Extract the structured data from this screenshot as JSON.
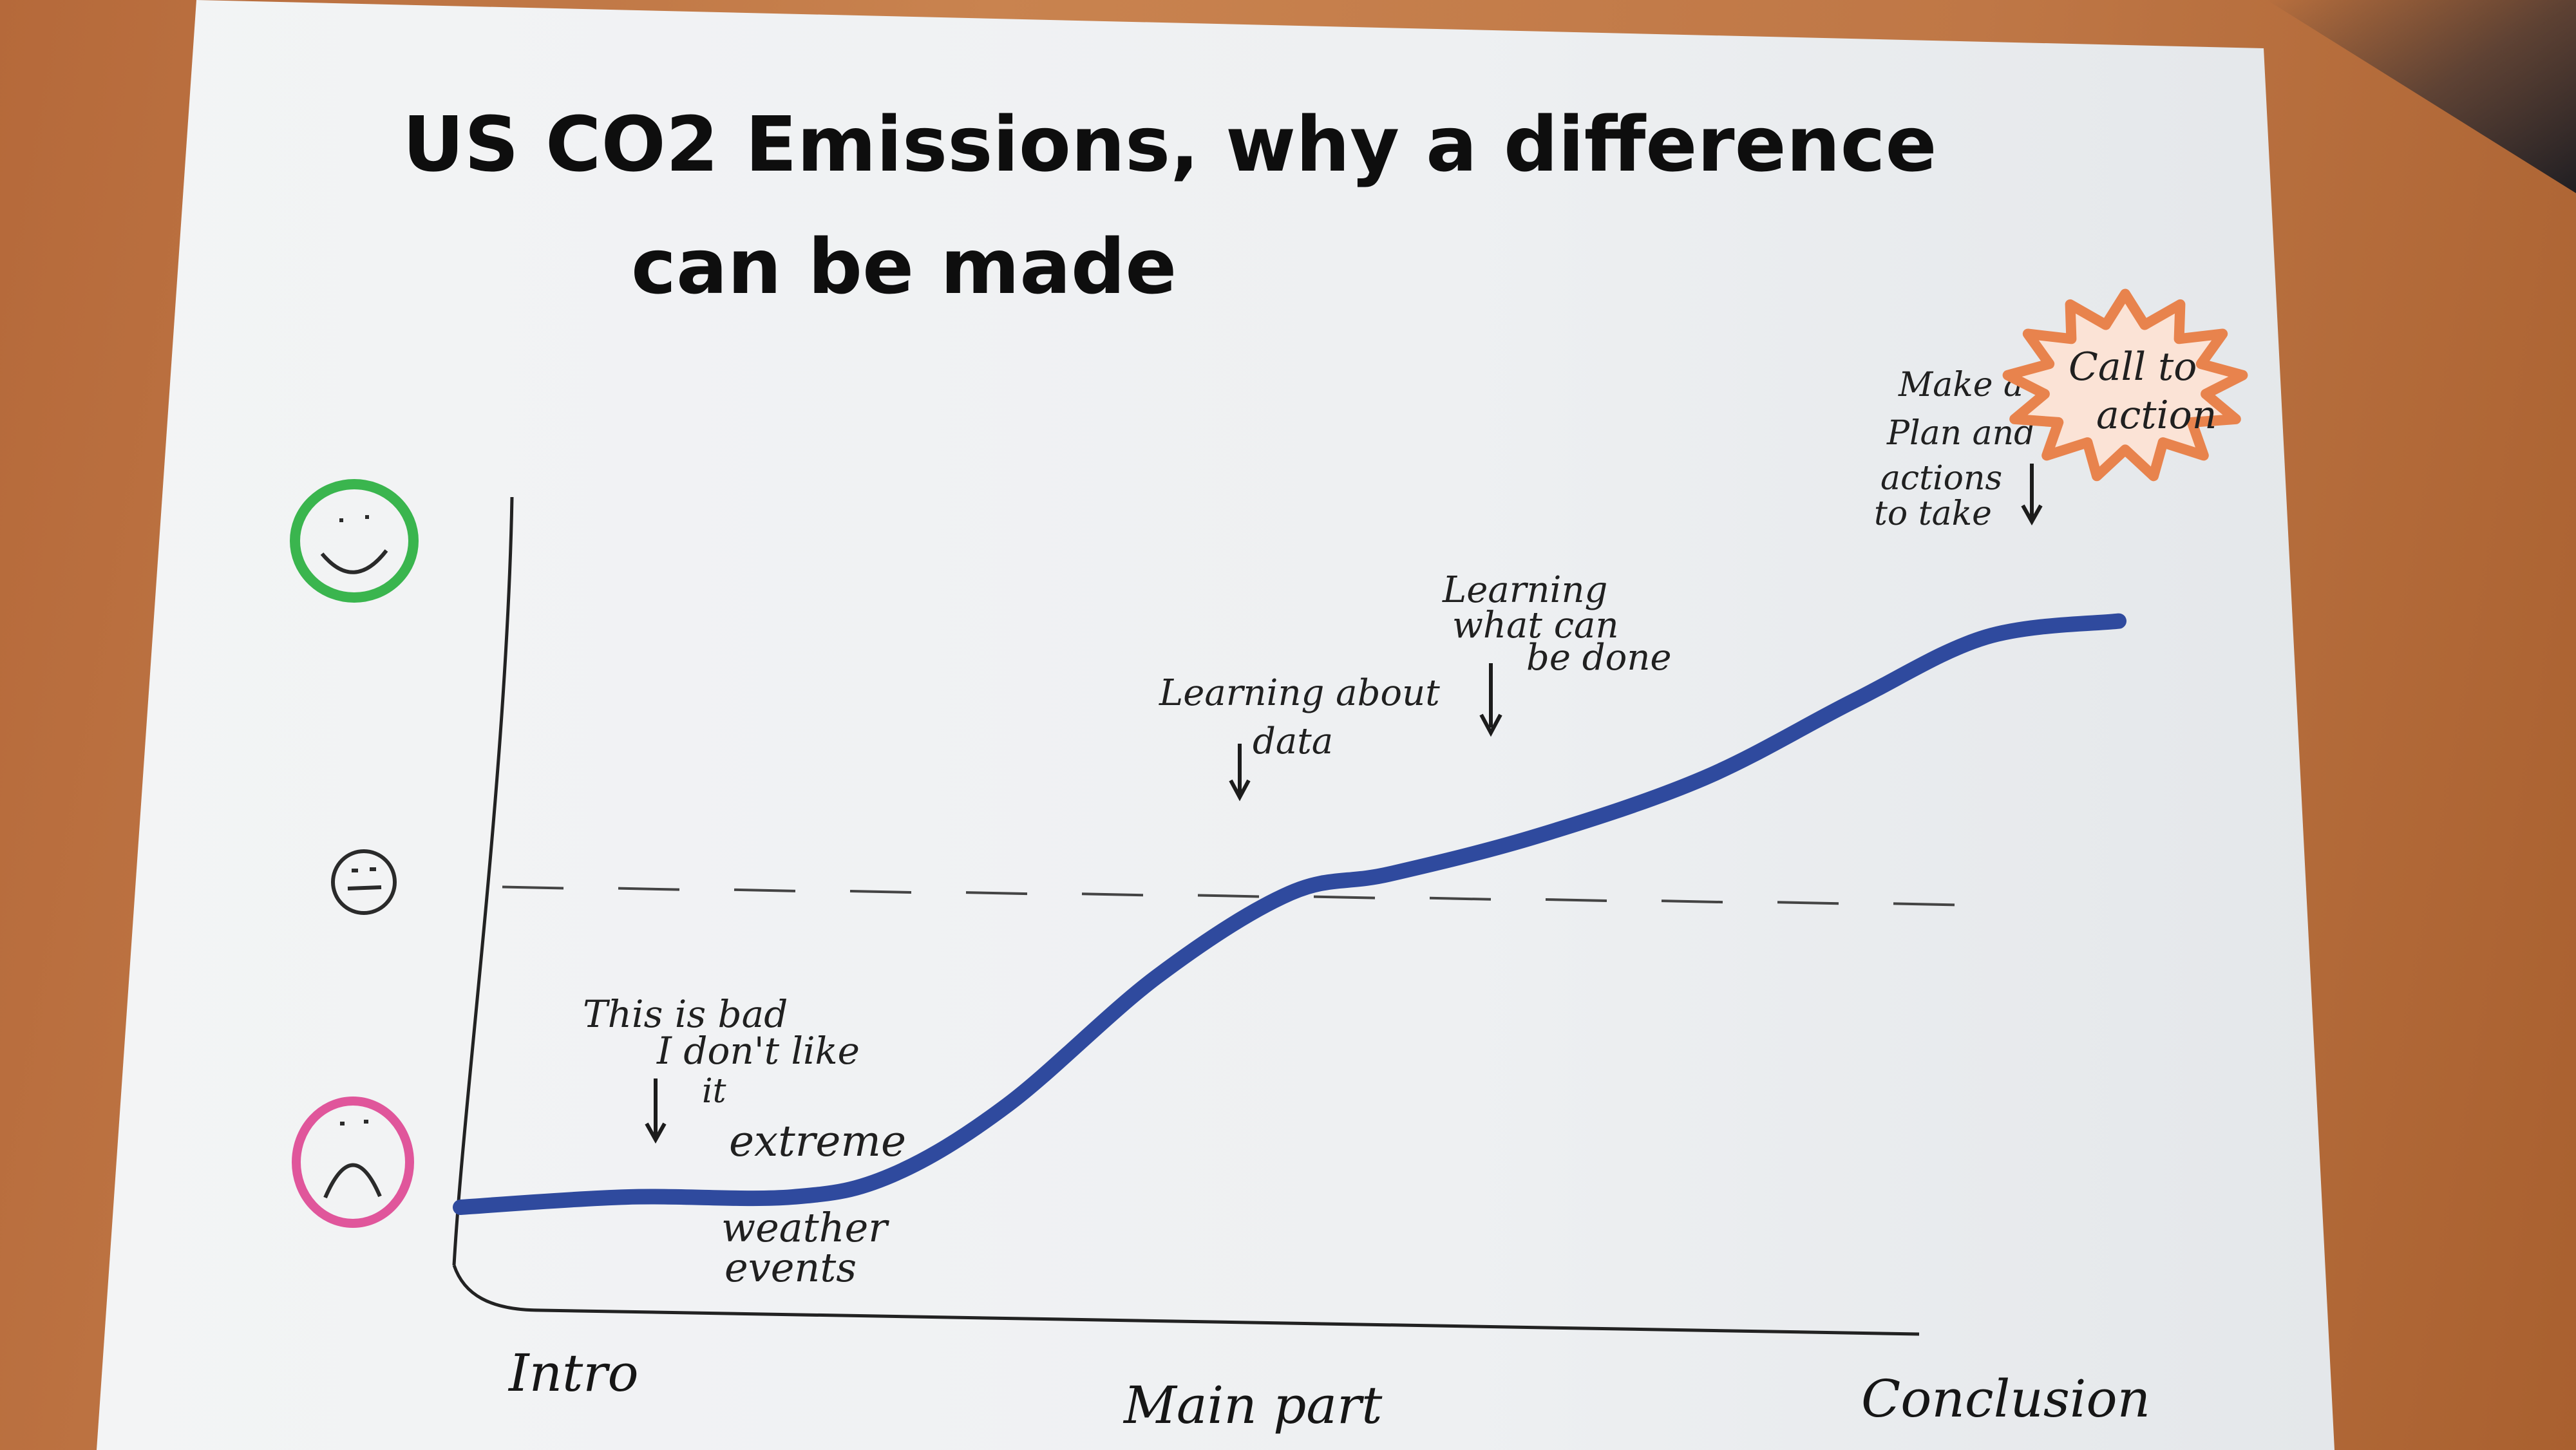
{
  "chart_data": {
    "type": "line",
    "title": "US CO2 Emissions, why a difference can be made",
    "title_lines": [
      "US CO2 Emissions, why a difference",
      "can be made"
    ],
    "xlabel": "",
    "ylabel": "",
    "x_ticks": [
      "Intro",
      "Main part",
      "Conclusion"
    ],
    "y_levels": [
      {
        "name": "happy-face",
        "level": 1.0,
        "color": "#37b04c"
      },
      {
        "name": "neutral-face",
        "level": 0.5,
        "color": "#2a2a2a"
      },
      {
        "name": "sad-face",
        "level": 0.0,
        "color": "#e0569b"
      }
    ],
    "neutral_line": 0.5,
    "ylim": [
      0,
      1
    ],
    "xlim": [
      0,
      1
    ],
    "series": [
      {
        "color": "#2f4a9e",
        "x": [
          0.0,
          0.1,
          0.2,
          0.26,
          0.33,
          0.42,
          0.5,
          0.56,
          0.65,
          0.75,
          0.84,
          0.92,
          1.0
        ],
        "y": [
          0.0,
          0.016,
          0.016,
          0.05,
          0.16,
          0.36,
          0.49,
          0.52,
          0.58,
          0.67,
          0.79,
          0.89,
          0.915
        ]
      }
    ],
    "annotations": [
      {
        "name": "bad-note",
        "lines": [
          "This is bad",
          "I don't like",
          "it"
        ],
        "arrow_x": 0.095,
        "arrow_y": 0.05
      },
      {
        "name": "weather-note",
        "lines": [
          "extreme",
          "weather",
          "events"
        ]
      },
      {
        "name": "data-note",
        "lines": [
          "Learning about",
          "data"
        ],
        "arrow_x": 0.48,
        "arrow_y": 0.55
      },
      {
        "name": "action-note",
        "lines": [
          "Learning",
          "what can",
          "be done"
        ],
        "arrow_x": 0.63,
        "arrow_y": 0.64
      },
      {
        "name": "plan-note",
        "lines": [
          "Make a",
          "Plan and",
          "actions",
          "to take"
        ],
        "arrow_x": 0.94,
        "arrow_y": 0.93
      },
      {
        "name": "call-to-action",
        "lines": [
          "Call to",
          "action"
        ],
        "color": "#e8834d"
      }
    ],
    "grid": false,
    "legend": "none"
  }
}
